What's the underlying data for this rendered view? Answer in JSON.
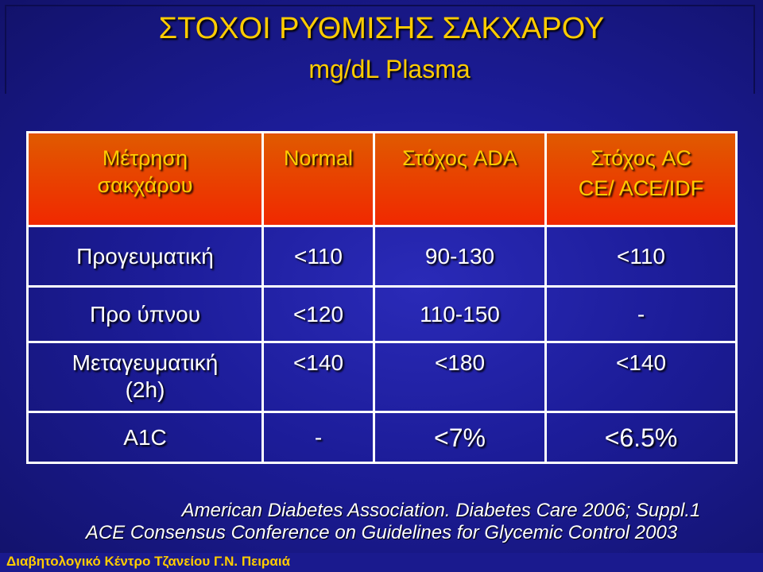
{
  "slide": {
    "title": "ΣΤΟΧΟΙ ΡΥΘΜΙΣΗΣ ΣΑΚΧΑΡΟΥ",
    "subtitle": "mg/dL Plasma"
  },
  "table": {
    "headers": {
      "measure": [
        "Μέτρηση",
        "σακχάρου"
      ],
      "normal": "Normal",
      "ada": "Στόχος ADA",
      "ac": [
        "Στόχος AC",
        "CE/ ACE/IDF"
      ]
    },
    "rows": [
      {
        "label": [
          "Προγευματική",
          ""
        ],
        "normal": "<110",
        "ada": "90-130",
        "ac": "<110"
      },
      {
        "label": [
          "Προ ύπνου",
          ""
        ],
        "normal": "<120",
        "ada": "110-150",
        "ac": "-"
      },
      {
        "label": [
          "Μεταγευματική",
          "(2h)"
        ],
        "normal": "<140",
        "ada": "<180",
        "ac": "<140"
      },
      {
        "label": [
          "A1C",
          ""
        ],
        "normal": "-",
        "ada": "<7%",
        "ac": "<6.5%"
      }
    ]
  },
  "footnotes": {
    "line1": "American Diabetes Association. Diabetes Care 2006; Suppl.1",
    "line2": "ACE Consensus Conference on Guidelines for Glycemic Control 2003"
  },
  "footer": {
    "text": "Διαβητολογικό Κέντρο Τζανείου Γ.Ν. Πειραιά"
  },
  "colors": {
    "background": "#1c1c98",
    "title": "#ffcc00",
    "header_fill": "#f12800",
    "text": "#ffffff"
  }
}
